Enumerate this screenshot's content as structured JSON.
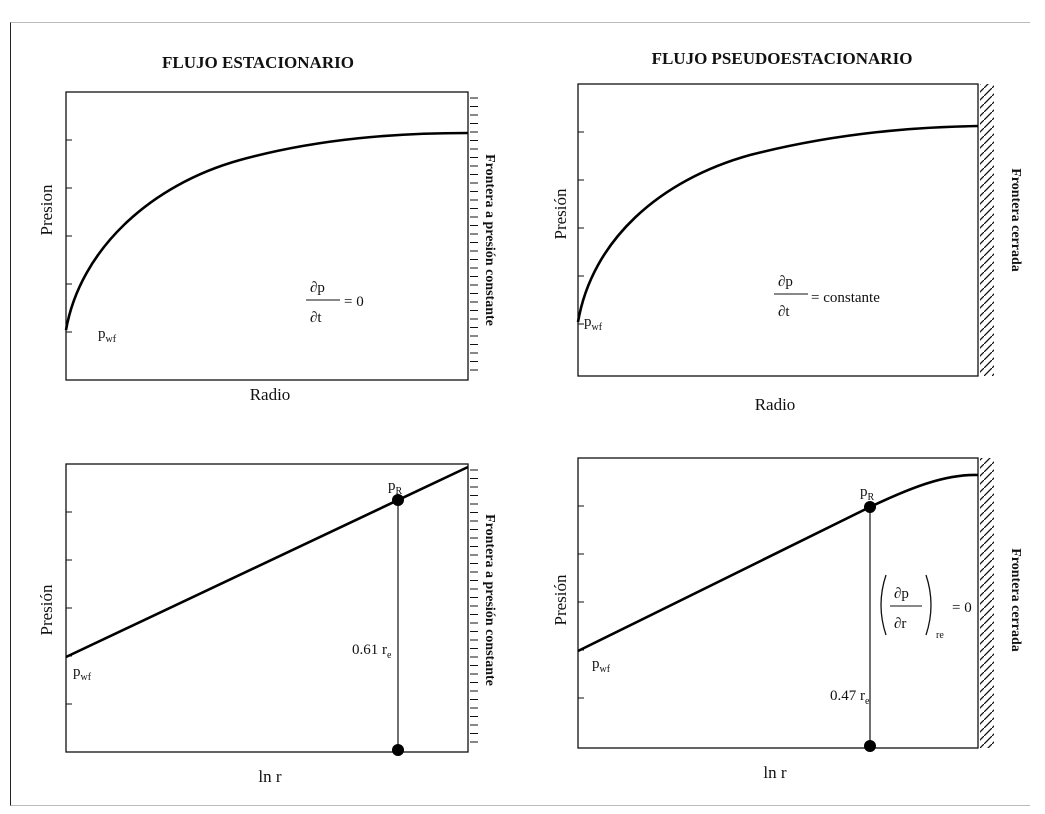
{
  "panels": {
    "top_left": {
      "title": "FLUJO ESTACIONARIO",
      "xlabel": "Radio",
      "ylabel": "Presion",
      "boundary": "Frontera a presión constante",
      "pwf": "p",
      "pwf_sub": "wf",
      "deriv_num": "∂p",
      "deriv_den": "∂t",
      "deriv_eq": "= 0"
    },
    "top_right": {
      "title": "FLUJO PSEUDOESTACIONARIO",
      "xlabel": "Radio",
      "ylabel": "Presión",
      "boundary": "Frontera cerrada",
      "pwf": "p",
      "pwf_sub": "wf",
      "deriv_num": "∂p",
      "deriv_den": "∂t",
      "deriv_eq": "= constante"
    },
    "bottom_left": {
      "xlabel": "ln r",
      "ylabel": "Presión",
      "boundary": "Frontera a presión constante",
      "pwf": "p",
      "pwf_sub": "wf",
      "pr": "p",
      "pr_sub": "R",
      "radius_value": "0.61 r",
      "radius_sub": "e"
    },
    "bottom_right": {
      "xlabel": "ln r",
      "ylabel": "Presión",
      "boundary": "Frontera cerrada",
      "pwf": "p",
      "pwf_sub": "wf",
      "pr": "p",
      "pr_sub": "R",
      "radius_value": "0.47 r",
      "radius_sub": "e",
      "deriv_num": "∂p",
      "deriv_den": "∂r",
      "deriv_sub": "re",
      "deriv_eq": "= 0"
    }
  }
}
